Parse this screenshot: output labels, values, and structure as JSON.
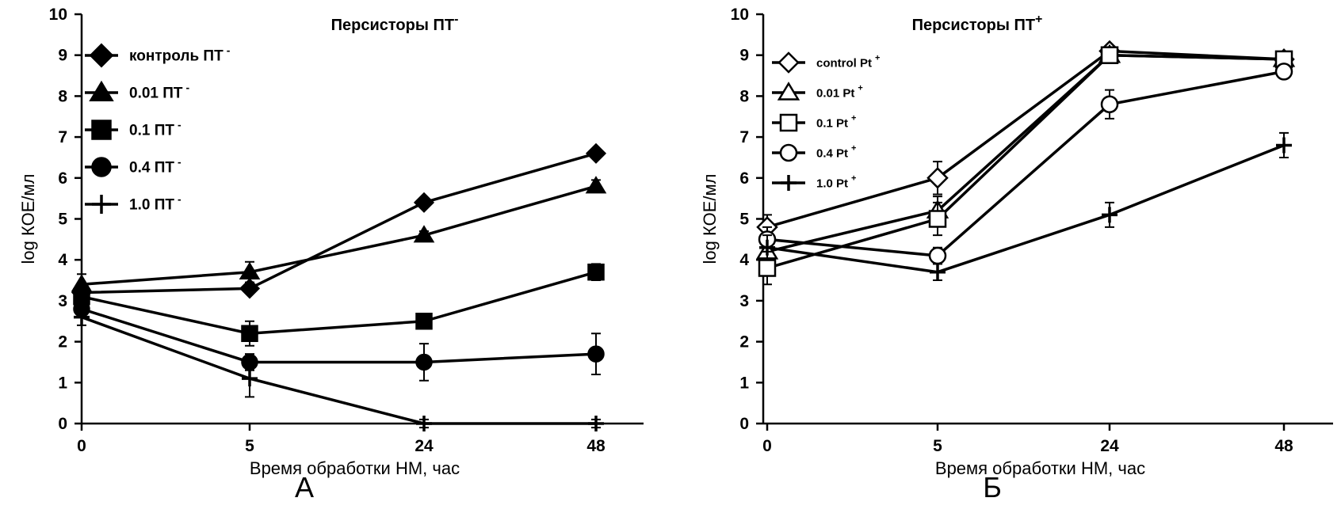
{
  "chart_data": [
    {
      "type": "line",
      "panel": "А",
      "title": "Персисторы ПТ",
      "title_superscript": "-",
      "xlabel": "Время обработки НМ, час",
      "ylabel": "log КОЕ/мл",
      "categories": [
        "0",
        "5",
        "24",
        "48"
      ],
      "ylim": [
        0,
        10
      ],
      "yticks": [
        "0",
        "1",
        "2",
        "3",
        "4",
        "5",
        "6",
        "7",
        "8",
        "9",
        "10"
      ],
      "legend_position": "top-left",
      "series": [
        {
          "name": "контроль ПТ",
          "superscript": "-",
          "marker": "diamond-filled",
          "values": [
            3.2,
            3.3,
            5.4,
            6.6
          ],
          "errors": [
            0.15,
            0.1,
            0.1,
            0.1
          ]
        },
        {
          "name": "0.01 ПТ",
          "superscript": "-",
          "marker": "triangle-filled",
          "values": [
            3.4,
            3.7,
            4.6,
            5.8
          ],
          "errors": [
            0.25,
            0.25,
            0.1,
            0.15
          ]
        },
        {
          "name": "0.1 ПТ",
          "superscript": "-",
          "marker": "square-filled",
          "values": [
            3.1,
            2.2,
            2.5,
            3.7
          ],
          "errors": [
            0.2,
            0.3,
            0.15,
            0.2
          ]
        },
        {
          "name": "0.4 ПТ",
          "superscript": "-",
          "marker": "circle-filled",
          "values": [
            2.8,
            1.5,
            1.5,
            1.7
          ],
          "errors": [
            0.2,
            0.2,
            0.45,
            0.5
          ]
        },
        {
          "name": "1.0 ПТ",
          "superscript": "-",
          "marker": "plus",
          "values": [
            2.6,
            1.1,
            0.0,
            0.0
          ],
          "errors": [
            0.2,
            0.45,
            0.1,
            0.1
          ]
        }
      ]
    },
    {
      "type": "line",
      "panel": "Б",
      "title": "Персисторы ПТ",
      "title_superscript": "+",
      "xlabel": "Время обработки НМ, час",
      "ylabel": "log КОЕ/мл",
      "categories": [
        "0",
        "5",
        "24",
        "48"
      ],
      "ylim": [
        0,
        10
      ],
      "yticks": [
        "0",
        "1",
        "2",
        "3",
        "4",
        "5",
        "6",
        "7",
        "8",
        "9",
        "10"
      ],
      "legend_position": "top-left",
      "series": [
        {
          "name": "control Pt",
          "superscript": "+",
          "marker": "diamond-open",
          "values": [
            4.8,
            6.0,
            9.1,
            8.9
          ],
          "errors": [
            0.3,
            0.4,
            0.1,
            0.1
          ]
        },
        {
          "name": "0.01 Pt",
          "superscript": "+",
          "marker": "triangle-open",
          "values": [
            4.2,
            5.2,
            9.0,
            8.9
          ],
          "errors": [
            0.3,
            0.35,
            0.1,
            0.1
          ]
        },
        {
          "name": "0.1 Pt",
          "superscript": "+",
          "marker": "square-open",
          "values": [
            3.8,
            5.0,
            9.0,
            8.9
          ],
          "errors": [
            0.4,
            0.4,
            0.1,
            0.1
          ]
        },
        {
          "name": "0.4 Pt",
          "superscript": "+",
          "marker": "circle-open",
          "values": [
            4.5,
            4.1,
            7.8,
            8.6
          ],
          "errors": [
            0.3,
            0.2,
            0.35,
            0.15
          ]
        },
        {
          "name": "1.0 Pt",
          "superscript": "+",
          "marker": "plus",
          "values": [
            4.3,
            3.7,
            5.1,
            6.8
          ],
          "errors": [
            0.3,
            0.2,
            0.3,
            0.3
          ]
        }
      ]
    }
  ]
}
